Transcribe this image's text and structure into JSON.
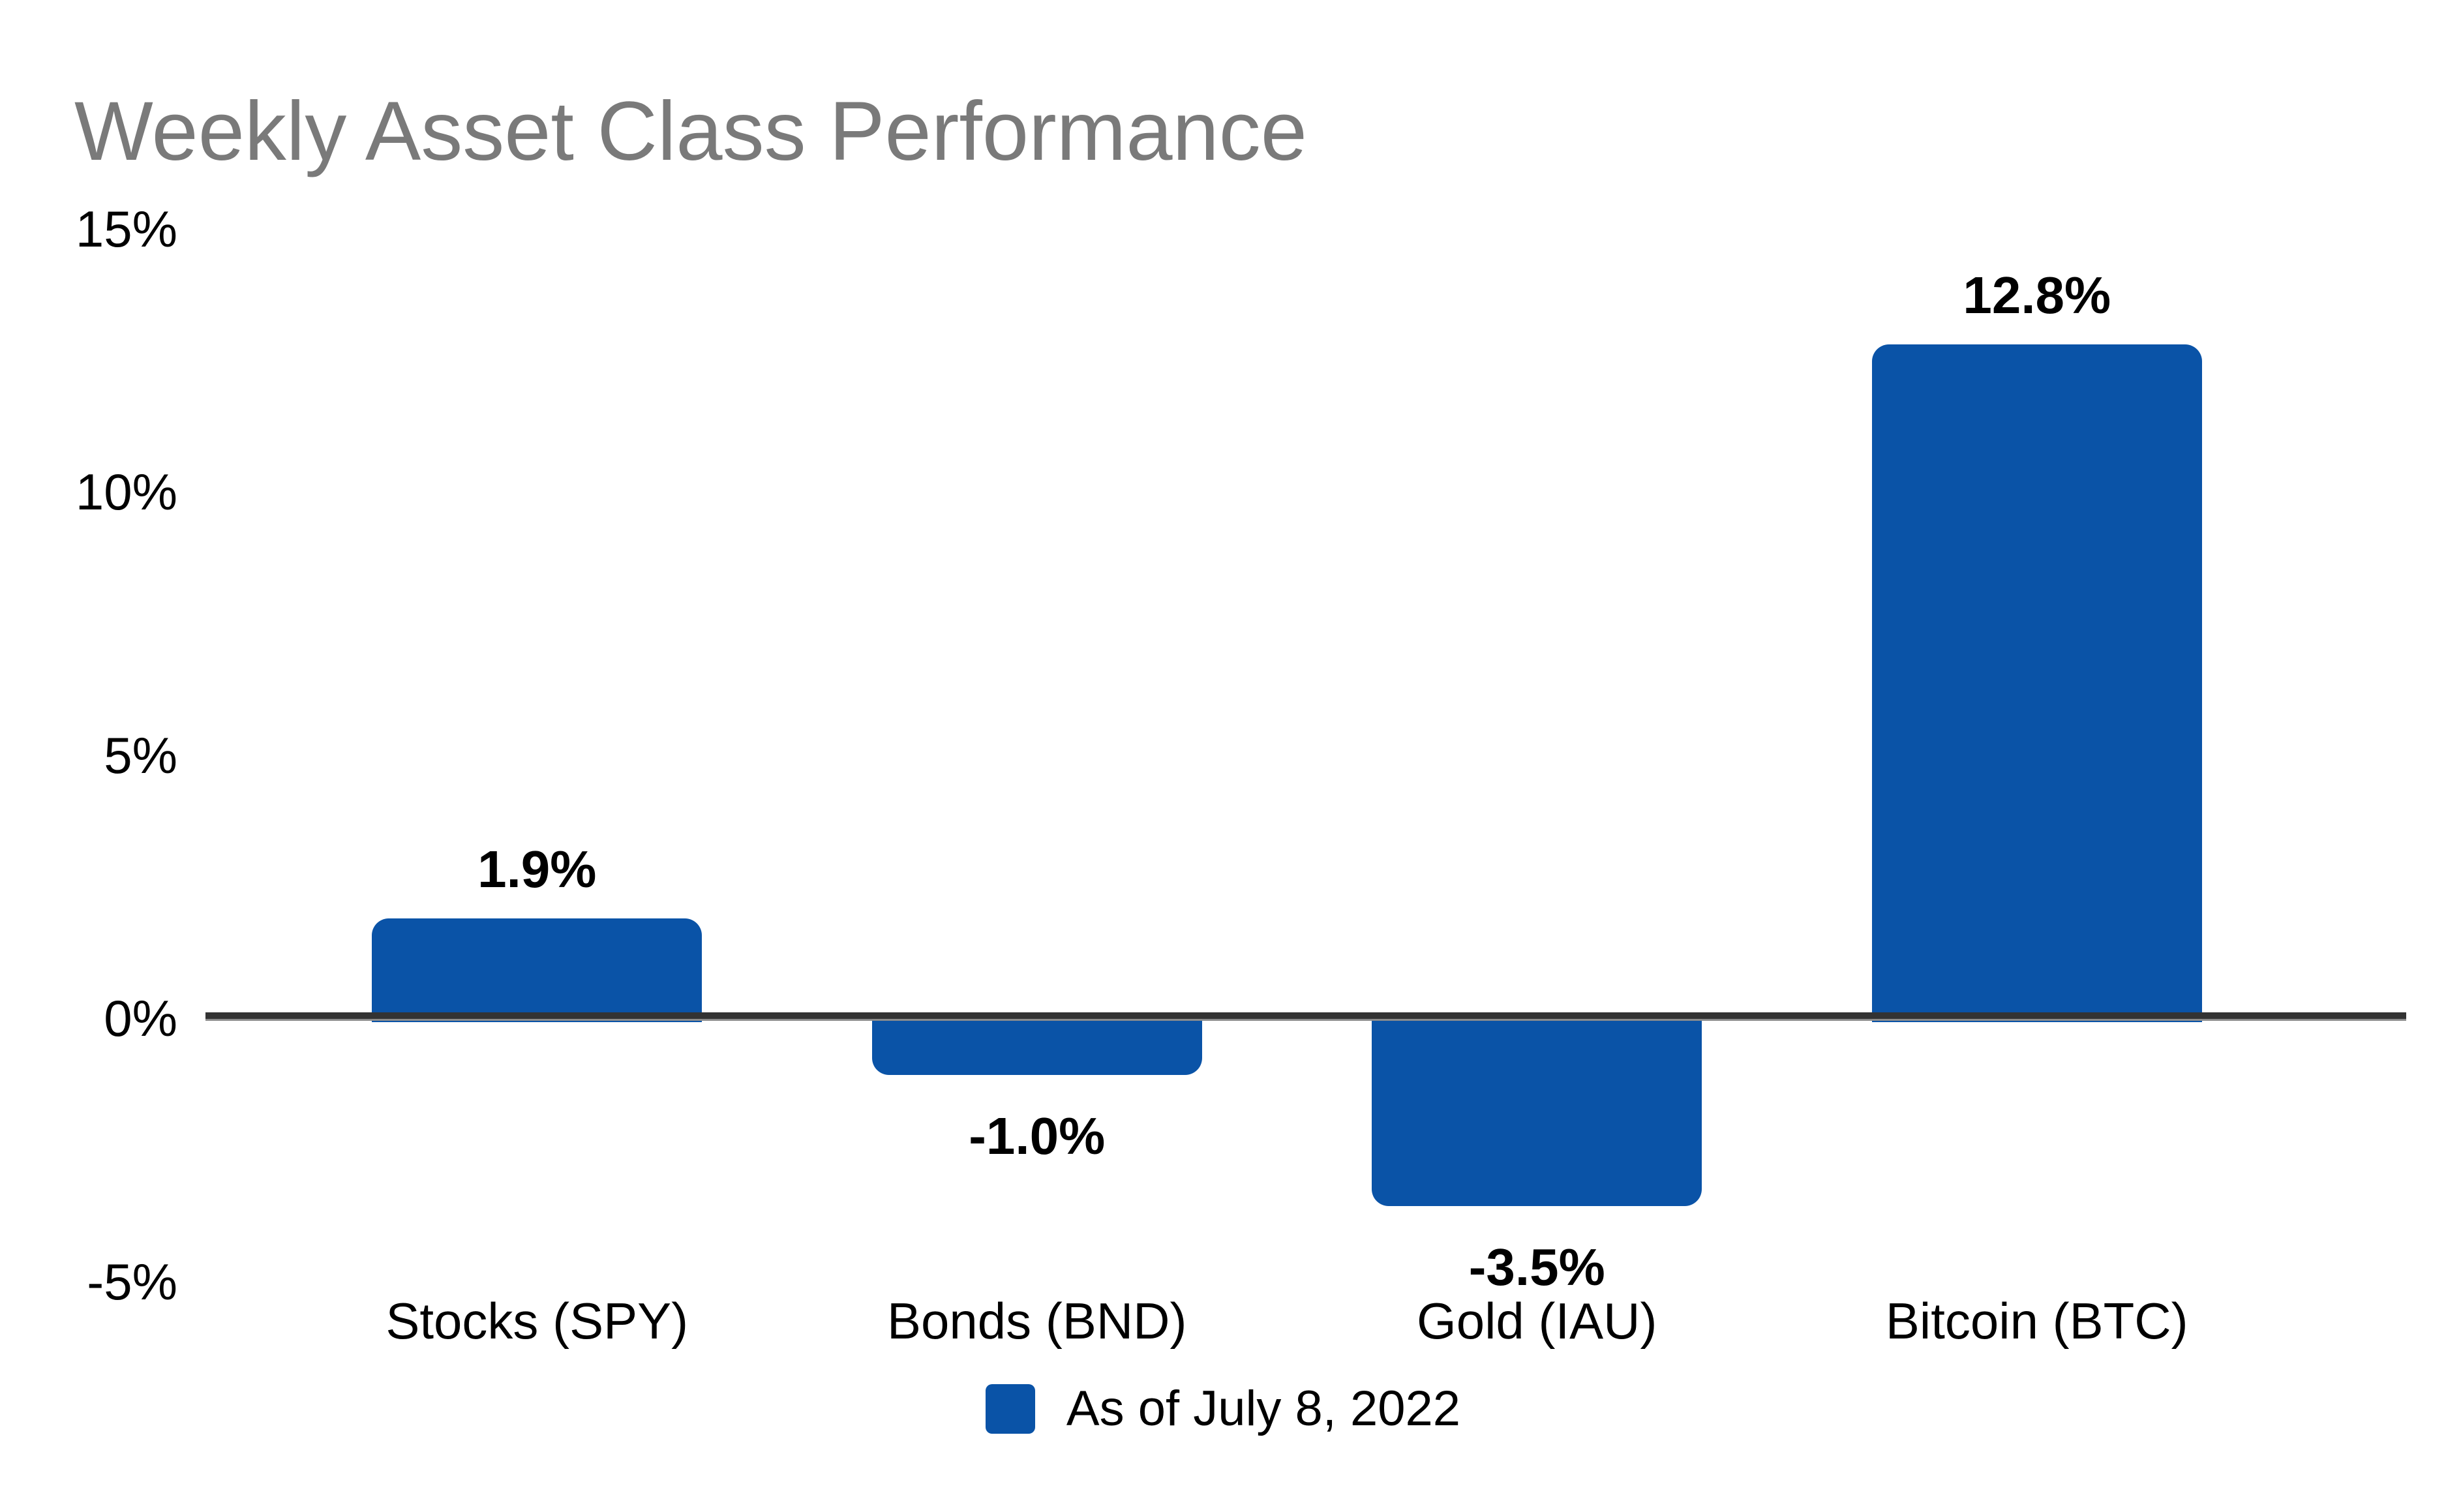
{
  "chart_data": {
    "type": "bar",
    "title": "Weekly Asset Class Performance",
    "categories": [
      "Stocks (SPY)",
      "Bonds (BND)",
      "Gold (IAU)",
      "Bitcoin (BTC)"
    ],
    "values": [
      1.9,
      -1.0,
      -3.5,
      12.8
    ],
    "value_labels": [
      "1.9%",
      "-1.0%",
      "-3.5%",
      "12.8%"
    ],
    "series": [
      {
        "name": "As of July 8, 2022",
        "values": [
          1.9,
          -1.0,
          -3.5,
          12.8
        ]
      }
    ],
    "y_ticks": [
      {
        "value": 15,
        "label": "15%"
      },
      {
        "value": 10,
        "label": "10%"
      },
      {
        "value": 5,
        "label": "5%"
      },
      {
        "value": 0,
        "label": "0%"
      },
      {
        "value": -5,
        "label": "-5%"
      }
    ],
    "ylim": [
      -5,
      15
    ],
    "xlabel": "",
    "ylabel": "",
    "grid": false,
    "legend": {
      "label": "As of July 8, 2022",
      "position": "bottom-center"
    },
    "colors": {
      "bar": "#0A53A7",
      "title": "#7A7A7A",
      "axis_line": "#333333",
      "text": "#000000",
      "background": "#FFFFFF"
    }
  }
}
